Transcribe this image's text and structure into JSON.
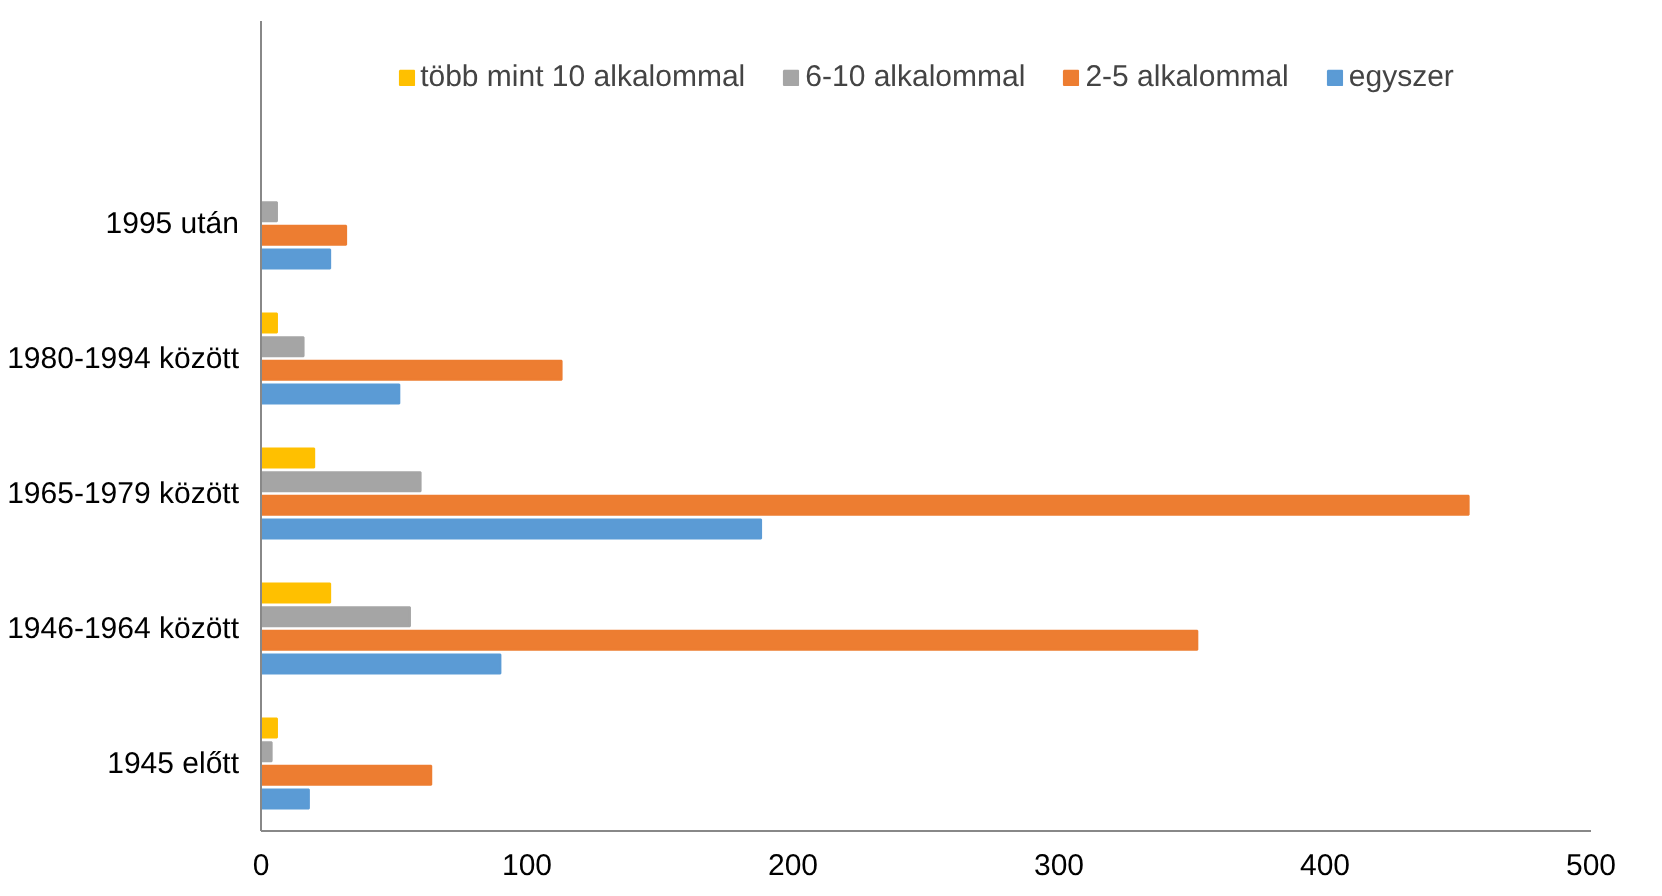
{
  "chart_data": {
    "type": "bar",
    "orientation": "horizontal",
    "categories": [
      "1995 után",
      "1980-1994 között",
      "1965-1979 között",
      "1946-1964 között",
      "1945 előtt"
    ],
    "series": [
      {
        "name": "több mint 10 alkalommal",
        "color": "#ffc000",
        "values": [
          null,
          6,
          20,
          26,
          6
        ]
      },
      {
        "name": "6-10 alkalommal",
        "color": "#a5a5a5",
        "values": [
          6,
          16,
          60,
          56,
          4
        ]
      },
      {
        "name": "2-5 alkalommal",
        "color": "#ed7d31",
        "values": [
          32,
          113,
          454,
          352,
          64
        ]
      },
      {
        "name": "egyszer",
        "color": "#5b9bd5",
        "values": [
          26,
          52,
          188,
          90,
          18
        ]
      }
    ],
    "xlim": [
      0,
      500
    ],
    "xticks": [
      0,
      100,
      200,
      300,
      400,
      500
    ],
    "grid": false,
    "legend": "top"
  }
}
